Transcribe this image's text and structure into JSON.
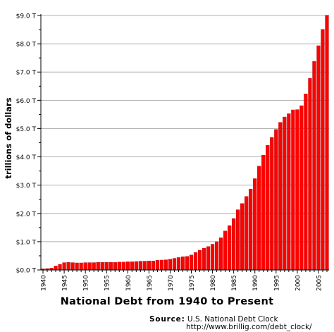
{
  "chart_data": {
    "type": "bar",
    "title": "National Debt from 1940 to Present",
    "ylabel": "trillions of dollars",
    "xlabel": "",
    "ylim": [
      0,
      9.0
    ],
    "y_tick_values": [
      0,
      1,
      2,
      3,
      4,
      5,
      6,
      7,
      8,
      9
    ],
    "y_tick_labels": [
      "$0.0 T",
      "$1.0 T",
      "$2.0 T",
      "$3.0 T",
      "$4.0 T",
      "$5.0 T",
      "$6.0 T",
      "$7.0 T",
      "$8.0 T",
      "$9.0 T"
    ],
    "x_tick_labels": [
      "1940",
      "1945",
      "1950",
      "1955",
      "1960",
      "1965",
      "1970",
      "1975",
      "1980",
      "1985",
      "1990",
      "1995",
      "2000",
      "2005"
    ],
    "grid": true,
    "bar_color": "#ff0000",
    "bar_edge_color": "#aa0000",
    "categories": [
      "1940",
      "1941",
      "1942",
      "1943",
      "1944",
      "1945",
      "1946",
      "1947",
      "1948",
      "1949",
      "1950",
      "1951",
      "1952",
      "1953",
      "1954",
      "1955",
      "1956",
      "1957",
      "1958",
      "1959",
      "1960",
      "1961",
      "1962",
      "1963",
      "1964",
      "1965",
      "1966",
      "1967",
      "1968",
      "1969",
      "1970",
      "1971",
      "1972",
      "1973",
      "1974",
      "1975",
      "1976",
      "1977",
      "1978",
      "1979",
      "1980",
      "1981",
      "1982",
      "1983",
      "1984",
      "1985",
      "1986",
      "1987",
      "1988",
      "1989",
      "1990",
      "1991",
      "1992",
      "1993",
      "1994",
      "1995",
      "1996",
      "1997",
      "1998",
      "1999",
      "2000",
      "2001",
      "2002",
      "2003",
      "2004",
      "2005",
      "2006",
      "2007"
    ],
    "values": [
      0.04,
      0.05,
      0.07,
      0.14,
      0.2,
      0.26,
      0.27,
      0.26,
      0.25,
      0.25,
      0.26,
      0.26,
      0.26,
      0.27,
      0.27,
      0.27,
      0.27,
      0.27,
      0.28,
      0.28,
      0.29,
      0.29,
      0.3,
      0.31,
      0.31,
      0.32,
      0.32,
      0.34,
      0.35,
      0.36,
      0.38,
      0.41,
      0.44,
      0.47,
      0.48,
      0.53,
      0.62,
      0.7,
      0.77,
      0.83,
      0.91,
      1.0,
      1.14,
      1.38,
      1.57,
      1.82,
      2.13,
      2.35,
      2.6,
      2.86,
      3.23,
      3.67,
      4.06,
      4.41,
      4.69,
      4.97,
      5.22,
      5.41,
      5.53,
      5.66,
      5.67,
      5.81,
      6.23,
      6.78,
      7.38,
      7.93,
      8.51,
      9.01
    ]
  },
  "source": {
    "label": "Source:",
    "name": "U.S. National Debt Clock",
    "url": "http://www.brillig.com/debt_clock/"
  }
}
